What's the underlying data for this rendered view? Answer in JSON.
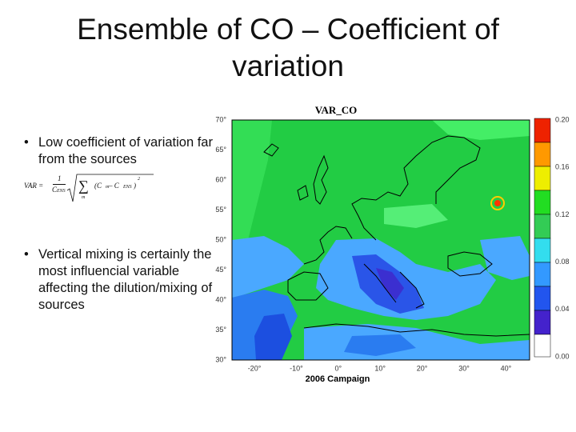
{
  "slide": {
    "title": "Ensemble of CO – Coefficient of variation",
    "bullets": [
      "Low coefficient of variation far from the sources",
      "Vertical mixing is certainly the most influencial variable affecting the dilution/mixing of sources"
    ],
    "formula": {
      "lhs": "VAR =",
      "numerator": "1",
      "denominator": {
        "base": "C",
        "sub": "ENS"
      },
      "sum_index": "m",
      "term": {
        "open": "(C",
        "sub1": "m",
        "minus": " – C",
        "sub2": "ENS",
        "close": ")",
        "power": "2"
      }
    },
    "map": {
      "title": "VAR_CO",
      "caption": "2006 Campaign",
      "lat_labels": [
        "70°",
        "65°",
        "60°",
        "55°",
        "50°",
        "45°",
        "40°",
        "35°",
        "30°"
      ],
      "lon_labels": [
        "-20°",
        "-10°",
        "0°",
        "10°",
        "20°",
        "30°",
        "40°"
      ],
      "colorbar_labels": [
        "0.20",
        "0.16",
        "0.12",
        "0.08",
        "0.04",
        "0.00"
      ]
    }
  }
}
